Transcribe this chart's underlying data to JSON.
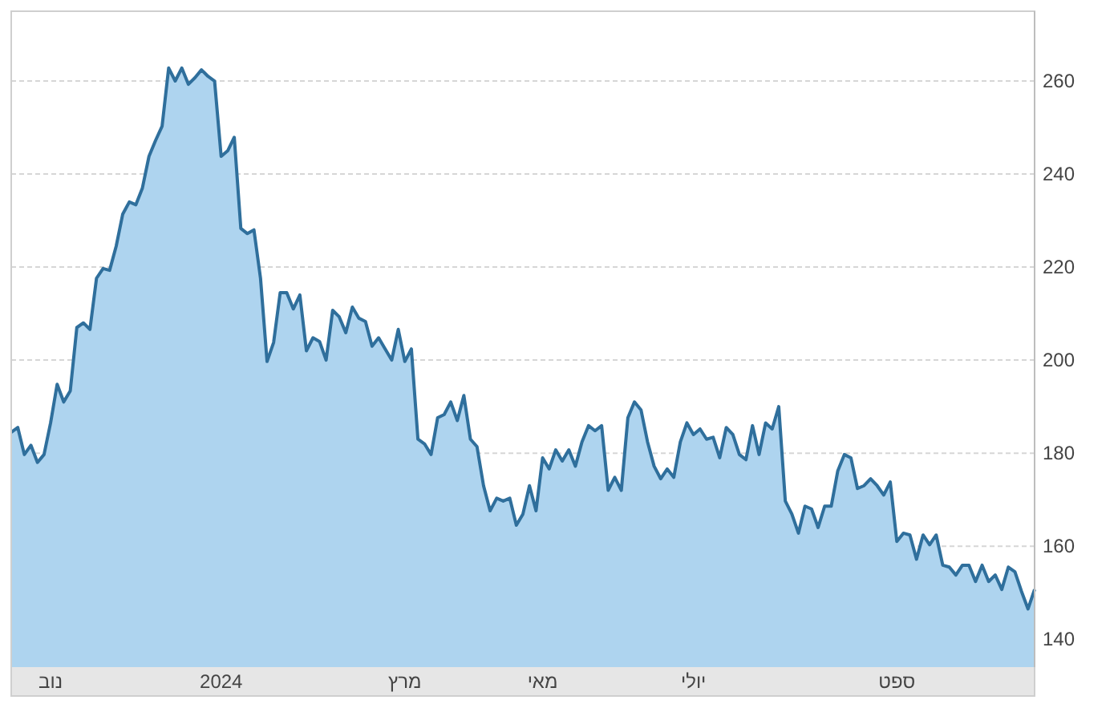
{
  "chart_data": {
    "type": "area",
    "categories": [
      null,
      null,
      null,
      null,
      null,
      null,
      "נוב",
      null,
      null,
      null,
      null,
      null,
      null,
      null,
      null,
      null,
      null,
      null,
      null,
      null,
      null,
      null,
      null,
      null,
      null,
      null,
      null,
      null,
      null,
      null,
      null,
      null,
      "2024",
      null,
      null,
      null,
      null,
      null,
      null,
      null,
      null,
      null,
      null,
      null,
      null,
      null,
      null,
      null,
      null,
      null,
      null,
      null,
      null,
      null,
      null,
      null,
      null,
      null,
      null,
      null,
      "מרץ",
      null,
      null,
      null,
      null,
      null,
      null,
      null,
      null,
      null,
      null,
      null,
      null,
      null,
      null,
      null,
      null,
      null,
      null,
      null,
      null,
      "מאי",
      null,
      null,
      null,
      null,
      null,
      null,
      null,
      null,
      null,
      null,
      null,
      null,
      null,
      null,
      null,
      null,
      null,
      null,
      null,
      null,
      null,
      null,
      "יולי",
      null,
      null,
      null,
      null,
      null,
      null,
      null,
      null,
      null,
      null,
      null,
      null,
      null,
      null,
      null,
      null,
      null,
      null,
      null,
      null,
      null,
      null,
      null,
      null,
      null,
      null,
      null,
      null,
      null,
      null,
      "ספט",
      null,
      null,
      null,
      null,
      null,
      null,
      null,
      null,
      null,
      null,
      null,
      null,
      null,
      null,
      null,
      null,
      null,
      null,
      null,
      null,
      null
    ],
    "ylim": [
      134,
      275
    ],
    "yticks": [
      140,
      160,
      180,
      200,
      220,
      240,
      260
    ],
    "grid": "y",
    "series": [
      {
        "color": "#2f6f9c",
        "values": [
          184.5,
          185.5,
          179.7,
          181.7,
          178,
          179.7,
          186.5,
          194.8,
          191,
          193.4,
          207,
          208,
          206.6,
          217.6,
          219.7,
          219.3,
          224.5,
          231.4,
          234,
          233.4,
          237,
          243.8,
          247.2,
          250.3,
          262.8,
          260,
          262.8,
          259.3,
          260.7,
          262.4,
          261,
          260,
          243.8,
          245,
          247.9,
          228.3,
          227.2,
          228,
          217.6,
          199.7,
          203.8,
          214.5,
          214.5,
          211,
          214,
          202,
          204.8,
          204,
          200,
          210.7,
          209.3,
          205.9,
          211.4,
          209,
          208.3,
          203,
          204.8,
          202.4,
          200,
          206.6,
          199.7,
          202.4,
          183,
          182,
          179.7,
          187.6,
          188.3,
          191,
          187,
          192.4,
          183,
          181.4,
          173,
          167.6,
          170.3,
          169.7,
          170.3,
          164.5,
          166.9,
          173,
          167.6,
          179,
          176.6,
          180.7,
          178.3,
          180.7,
          177.2,
          182.4,
          185.9,
          184.8,
          185.9,
          172,
          174.8,
          172,
          187.6,
          191,
          189.3,
          182.4,
          177.2,
          174.5,
          176.6,
          174.8,
          182.4,
          186.5,
          184,
          185.2,
          183,
          183.4,
          179,
          185.5,
          184,
          179.7,
          178.6,
          185.9,
          179.7,
          186.5,
          185.2,
          190,
          169.7,
          166.9,
          162.8,
          168.6,
          168,
          164,
          168.6,
          168.6,
          176.2,
          179.7,
          179,
          172.4,
          173,
          174.5,
          173,
          171,
          173.8,
          161,
          162.8,
          162.4,
          157.2,
          162.4,
          160.3,
          162.4,
          155.9,
          155.5,
          153.8,
          155.9,
          155.9,
          152.4,
          155.9,
          152.4,
          153.8,
          150.7,
          155.5,
          154.5,
          150.3,
          146.5,
          150.7
        ]
      }
    ]
  }
}
